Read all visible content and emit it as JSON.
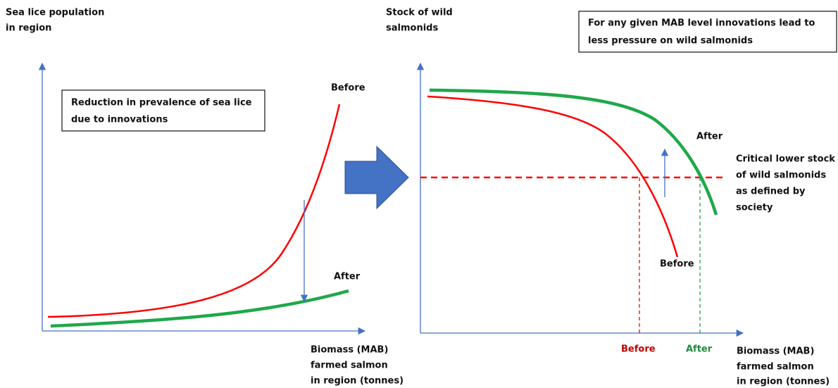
{
  "left_panel": {
    "y_axis_label": [
      "Sea lice population",
      "in region"
    ],
    "box_text": [
      "Reduction  in prevalence of sea lice",
      "due to innovations"
    ],
    "before_label": "Before",
    "after_label": "After",
    "x_axis_label": [
      "Biomass (MAB)",
      "farmed salmon",
      "in region (tonnes)"
    ]
  },
  "right_panel": {
    "y_axis_label": [
      "Stock of wild",
      "salmonids"
    ],
    "box_text": [
      "For any given MAB level innovations lead to",
      "less pressure on wild salmonids"
    ],
    "after_label": "After",
    "before_label": "Before",
    "threshold_label": [
      "Critical lower stock",
      "of wild salmonids",
      "as defined by",
      "society"
    ],
    "x_before_label": "Before",
    "x_after_label": "After",
    "x_axis_label": [
      "Biomass (MAB)",
      "farmed salmon",
      "in region (tonnes)"
    ]
  }
}
